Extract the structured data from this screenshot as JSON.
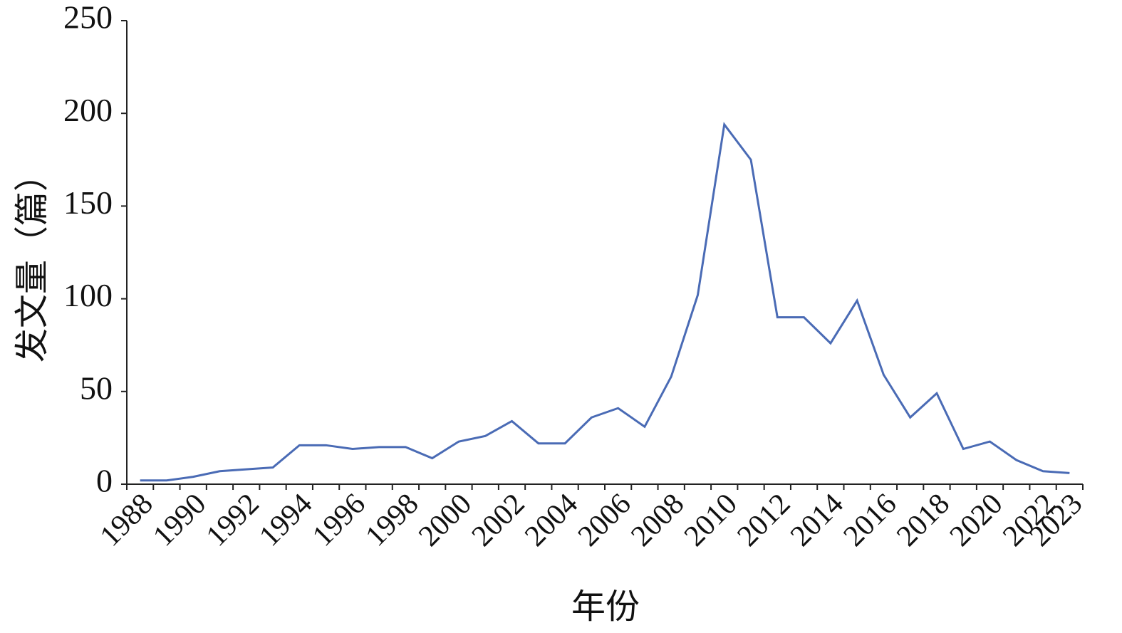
{
  "chart_data": {
    "type": "line",
    "x_label": "年份",
    "y_label": "发文量（篇）",
    "categories": [
      "1988",
      null,
      "1990",
      null,
      "1992",
      null,
      "1994",
      null,
      "1996",
      null,
      "1998",
      null,
      "2000",
      null,
      "2002",
      null,
      "2004",
      null,
      "2006",
      null,
      "2008",
      null,
      "2010",
      null,
      "2012",
      null,
      "2014",
      null,
      "2016",
      null,
      "2018",
      null,
      "2020",
      null,
      "2022",
      "2023"
    ],
    "series": [
      {
        "color": "#4a6bb5",
        "values": [
          2,
          2,
          4,
          7,
          8,
          9,
          21,
          21,
          19,
          20,
          20,
          14,
          23,
          26,
          34,
          22,
          22,
          36,
          41,
          31,
          58,
          102,
          194,
          175,
          90,
          90,
          76,
          99,
          59,
          36,
          49,
          19,
          23,
          13,
          7,
          6
        ]
      }
    ],
    "ylim": [
      0,
      250
    ],
    "yticks": [
      0,
      50,
      100,
      150,
      200,
      250
    ],
    "grid": false
  }
}
